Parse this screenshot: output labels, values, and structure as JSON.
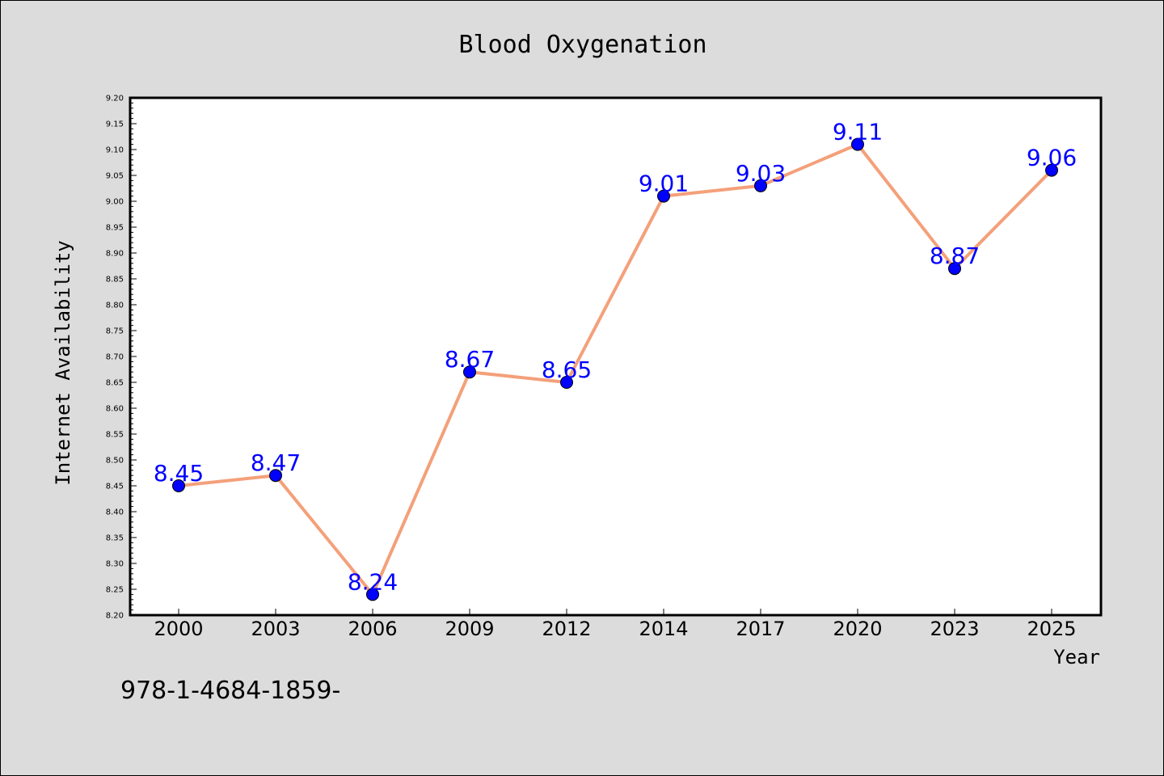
{
  "chart_data": {
    "type": "line",
    "title": "Blood Oxygenation",
    "xlabel": "Year",
    "ylabel": "Internet Availability",
    "categories": [
      "2000",
      "2003",
      "2006",
      "2009",
      "2012",
      "2014",
      "2017",
      "2020",
      "2023",
      "2025"
    ],
    "series": [
      {
        "values": [
          8.45,
          8.47,
          8.24,
          8.67,
          8.65,
          9.01,
          9.03,
          9.11,
          8.87,
          9.06
        ],
        "value_labels": [
          "8.45",
          "8.47",
          "8.24",
          "8.67",
          "8.65",
          "9.01",
          "9.03",
          "9.11",
          "8.87",
          "9.06"
        ],
        "line_color": "#f4a07a",
        "marker_color": "#0000ff",
        "label_color": "#0000ff"
      }
    ],
    "ylim": [
      8.2,
      9.2
    ],
    "yticks": [
      "8.20",
      "8.25",
      "8.30",
      "8.35",
      "8.40",
      "8.45",
      "8.50",
      "8.55",
      "8.60",
      "8.65",
      "8.70",
      "8.75",
      "8.80",
      "8.85",
      "8.90",
      "8.95",
      "9.00",
      "9.05",
      "9.10",
      "9.15",
      "9.20"
    ],
    "grid": false,
    "legend": "none",
    "colors": {
      "background": "#dcdcdc",
      "plot_area": "#ffffff",
      "axis": "#000000"
    }
  },
  "watermark": "978-1-4684-1859-"
}
